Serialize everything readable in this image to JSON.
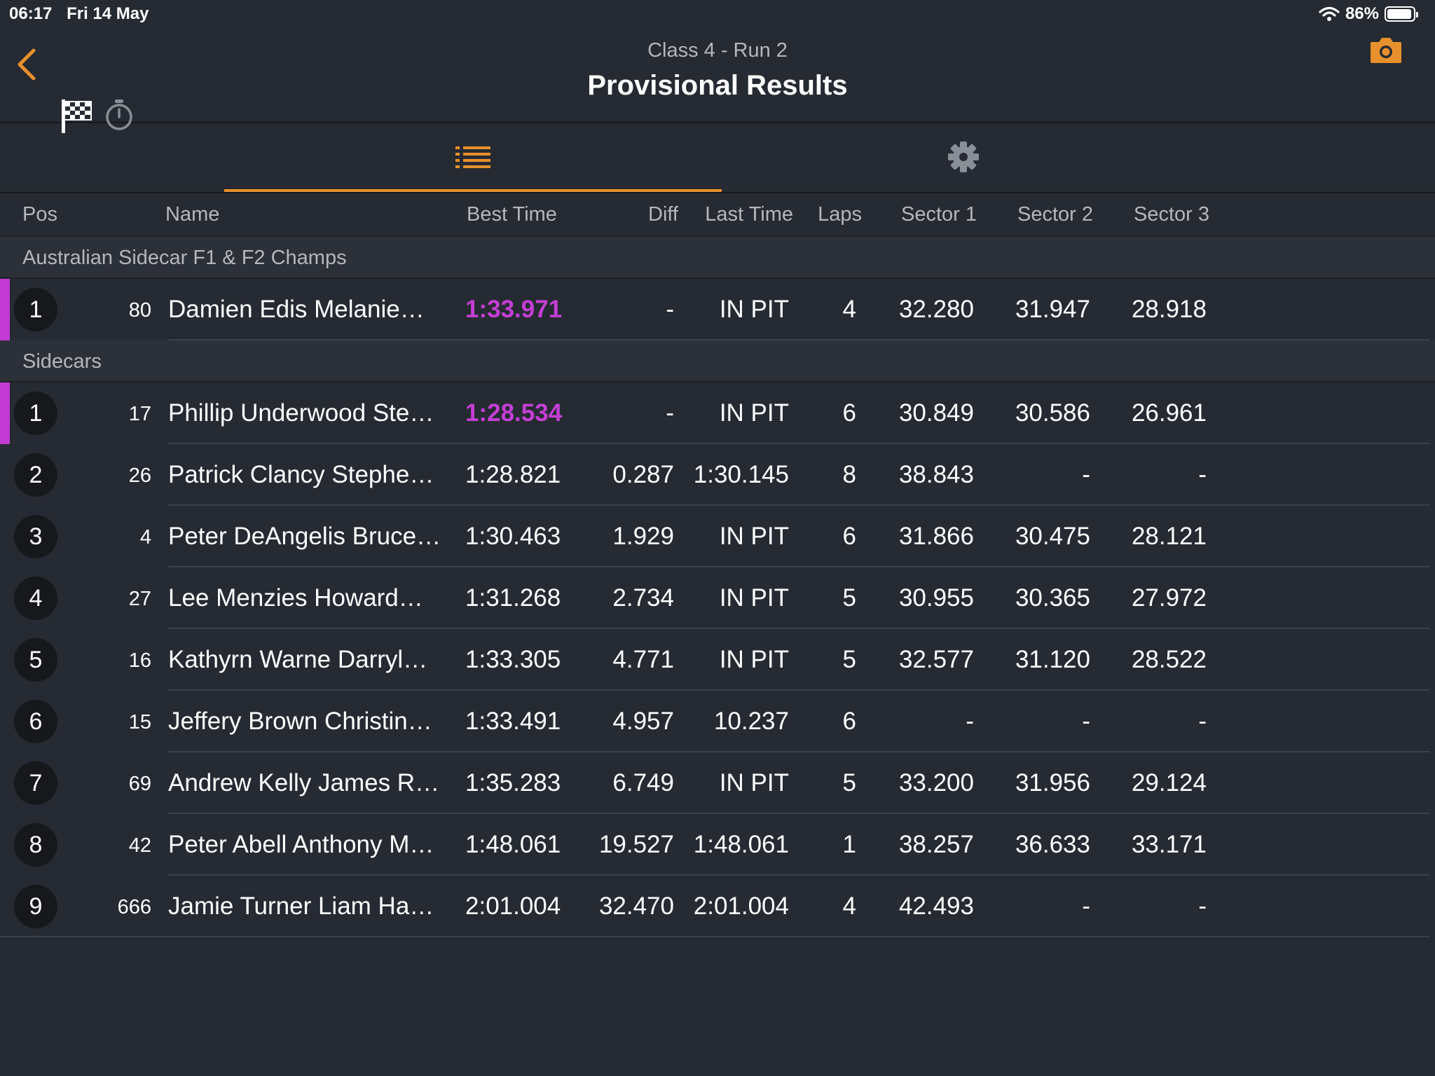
{
  "status_bar": {
    "time": "06:17",
    "date": "Fri 14 May",
    "battery": "86%",
    "battery_level": 0.86
  },
  "nav": {
    "subtitle": "Class 4 - Run 2",
    "title": "Provisional Results"
  },
  "columns": {
    "pos": "Pos",
    "name": "Name",
    "best_time": "Best Time",
    "diff": "Diff",
    "last_time": "Last Time",
    "laps": "Laps",
    "sector1": "Sector 1",
    "sector2": "Sector 2",
    "sector3": "Sector 3"
  },
  "accent_color": "#e8912c",
  "fastest_color": "#c43fd6",
  "groups": [
    {
      "name": "Australian Sidecar F1 & F2 Champs",
      "rows": [
        {
          "pos": "1",
          "num": "80",
          "name": "Damien Edis Melanie…",
          "best": "1:33.971",
          "diff": "-",
          "last": "IN PIT",
          "laps": "4",
          "s1": "32.280",
          "s2": "31.947",
          "s3": "28.918",
          "fastest": true
        }
      ]
    },
    {
      "name": "Sidecars",
      "rows": [
        {
          "pos": "1",
          "num": "17",
          "name": "Phillip Underwood Ste…",
          "best": "1:28.534",
          "diff": "-",
          "last": "IN PIT",
          "laps": "6",
          "s1": "30.849",
          "s2": "30.586",
          "s3": "26.961",
          "fastest": true
        },
        {
          "pos": "2",
          "num": "26",
          "name": "Patrick Clancy Stephe…",
          "best": "1:28.821",
          "diff": "0.287",
          "last": "1:30.145",
          "laps": "8",
          "s1": "38.843",
          "s2": "-",
          "s3": "-"
        },
        {
          "pos": "3",
          "num": "4",
          "name": "Peter DeAngelis Bruce…",
          "best": "1:30.463",
          "diff": "1.929",
          "last": "IN PIT",
          "laps": "6",
          "s1": "31.866",
          "s2": "30.475",
          "s3": "28.121"
        },
        {
          "pos": "4",
          "num": "27",
          "name": "Lee Menzies Howard…",
          "best": "1:31.268",
          "diff": "2.734",
          "last": "IN PIT",
          "laps": "5",
          "s1": "30.955",
          "s2": "30.365",
          "s3": "27.972"
        },
        {
          "pos": "5",
          "num": "16",
          "name": "Kathyrn Warne Darryl…",
          "best": "1:33.305",
          "diff": "4.771",
          "last": "IN PIT",
          "laps": "5",
          "s1": "32.577",
          "s2": "31.120",
          "s3": "28.522"
        },
        {
          "pos": "6",
          "num": "15",
          "name": "Jeffery Brown Christin…",
          "best": "1:33.491",
          "diff": "4.957",
          "last": "10.237",
          "laps": "6",
          "s1": "-",
          "s2": "-",
          "s3": "-"
        },
        {
          "pos": "7",
          "num": "69",
          "name": "Andrew Kelly James R…",
          "best": "1:35.283",
          "diff": "6.749",
          "last": "IN PIT",
          "laps": "5",
          "s1": "33.200",
          "s2": "31.956",
          "s3": "29.124"
        },
        {
          "pos": "8",
          "num": "42",
          "name": "Peter Abell Anthony M…",
          "best": "1:48.061",
          "diff": "19.527",
          "last": "1:48.061",
          "laps": "1",
          "s1": "38.257",
          "s2": "36.633",
          "s3": "33.171"
        },
        {
          "pos": "9",
          "num": "666",
          "name": "Jamie Turner Liam Ha…",
          "best": "2:01.004",
          "diff": "32.470",
          "last": "2:01.004",
          "laps": "4",
          "s1": "42.493",
          "s2": "-",
          "s3": "-"
        }
      ]
    }
  ]
}
